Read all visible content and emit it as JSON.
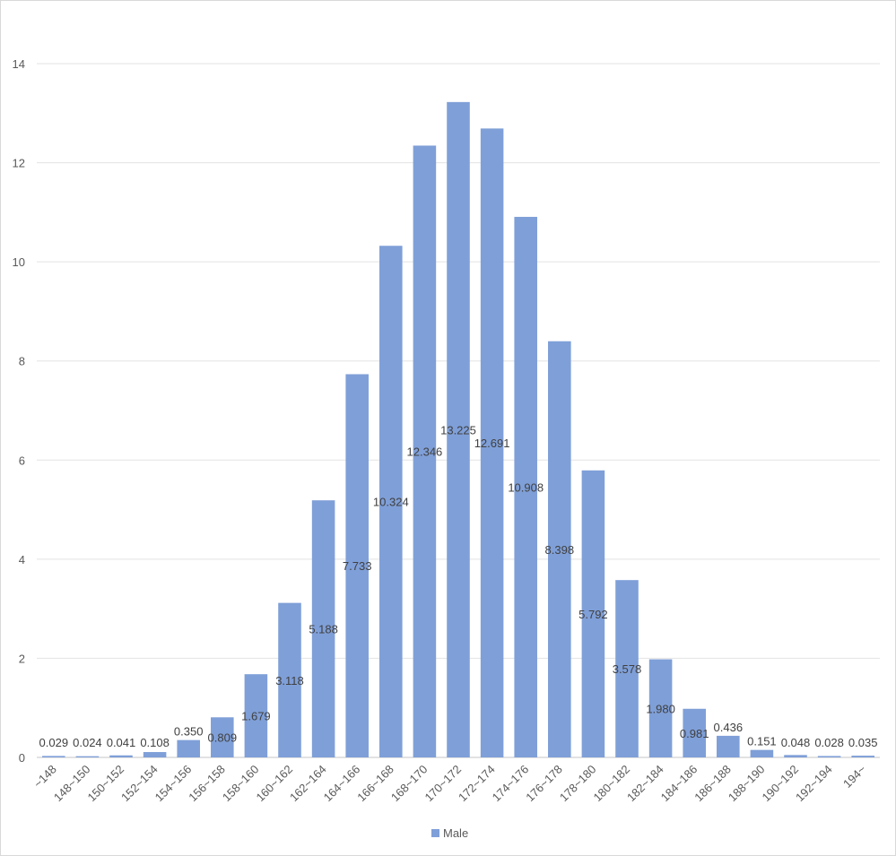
{
  "chart_data": {
    "type": "bar",
    "title": "",
    "xlabel": "",
    "ylabel": "",
    "ylim": [
      0,
      14
    ],
    "yticks": [
      0,
      2,
      4,
      6,
      8,
      10,
      12,
      14
    ],
    "grid": true,
    "legend_position": "bottom",
    "categories": [
      "~148",
      "148~150",
      "150~152",
      "152~154",
      "154~156",
      "156~158",
      "158~160",
      "160~162",
      "162~164",
      "164~166",
      "166~168",
      "168~170",
      "170~172",
      "172~174",
      "174~176",
      "176~178",
      "178~180",
      "180~182",
      "182~184",
      "184~186",
      "186~188",
      "188~190",
      "190~192",
      "192~194",
      "194~"
    ],
    "series": [
      {
        "name": "Male",
        "color": "#7f9fd8",
        "values": [
          0.029,
          0.024,
          0.041,
          0.108,
          0.35,
          0.809,
          1.679,
          3.118,
          5.188,
          7.733,
          10.324,
          12.346,
          13.225,
          12.691,
          10.908,
          8.398,
          5.792,
          3.578,
          1.98,
          0.981,
          0.436,
          0.151,
          0.048,
          0.028,
          0.035
        ],
        "labels": [
          "0.029",
          "0.024",
          "0.041",
          "0.108",
          "0.350",
          "0.809",
          "1.679",
          "3.118",
          "5.188",
          "7.733",
          "10.324",
          "12.346",
          "13.225",
          "12.691",
          "10.908",
          "8.398",
          "5.792",
          "3.578",
          "1.980",
          "0.981",
          "0.436",
          "0.151",
          "0.048",
          "0.028",
          "0.035"
        ]
      }
    ]
  }
}
